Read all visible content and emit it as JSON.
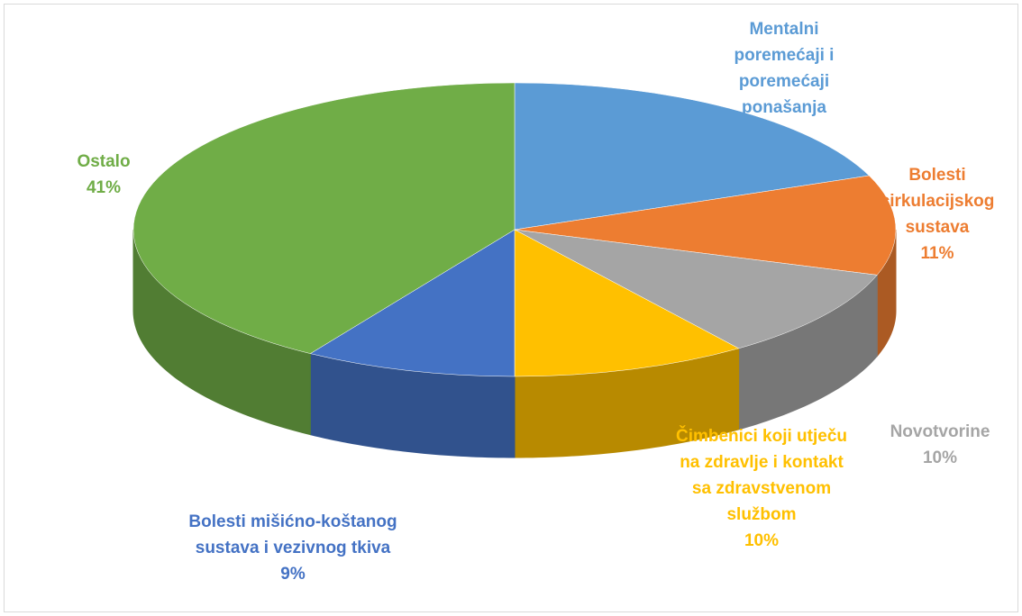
{
  "chart_data": {
    "type": "pie3d",
    "categories": [
      "Mentalni poremećaji i poremećaji ponašanja",
      "Bolesti cirkulacijskog sustava",
      "Novotvorine",
      "Čimbenici koji utječu na zdravlje i kontakt sa zdravstvenom službom",
      "Bolesti mišićno-koštanog sustava i vezivnog tkiva",
      "Ostalo"
    ],
    "values": [
      19,
      11,
      10,
      10,
      9,
      41
    ],
    "value_labels": [
      null,
      "11%",
      "10%",
      "10%",
      "9%",
      "41%"
    ],
    "colors": [
      "#5b9bd5",
      "#ed7d31",
      "#a5a5a5",
      "#ffc000",
      "#4472c4",
      "#70ad47"
    ]
  }
}
